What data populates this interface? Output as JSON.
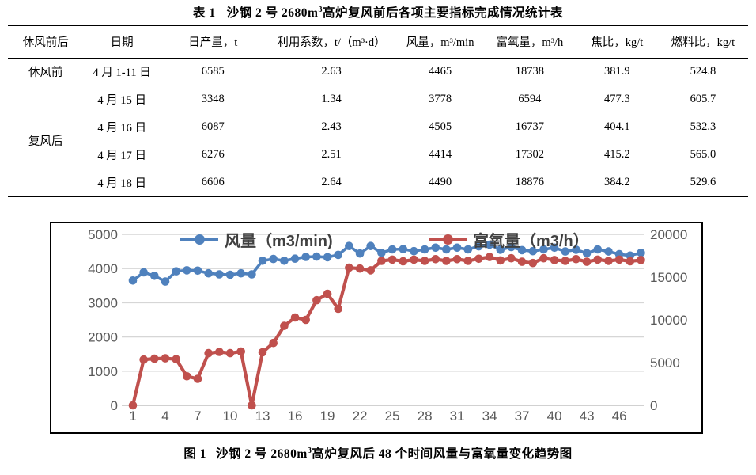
{
  "table_title": {
    "label": "表 1",
    "text": "沙钢 2 号 2680m",
    "sup": "3",
    "rest": "高炉复风前后各项主要指标完成情况统计表"
  },
  "table": {
    "header": [
      "休风前后",
      "日期",
      "日产量，t",
      "利用系数，t/（m³·d）",
      "风量，m³/min",
      "富氧量，m³/h",
      "焦比，kg/t",
      "燃料比，kg/t"
    ],
    "groups": [
      {
        "label": "休风前",
        "span": 1
      },
      {
        "label": "复风后",
        "span": 4
      }
    ],
    "rows": [
      [
        "4 月 1-11 日",
        "6585",
        "2.63",
        "4465",
        "18738",
        "381.9",
        "524.8"
      ],
      [
        "4 月 15 日",
        "3348",
        "1.34",
        "3778",
        "6594",
        "477.3",
        "605.7"
      ],
      [
        "4 月 16 日",
        "6087",
        "2.43",
        "4505",
        "16737",
        "404.1",
        "532.3"
      ],
      [
        "4 月 17 日",
        "6276",
        "2.51",
        "4414",
        "17302",
        "415.2",
        "565.0"
      ],
      [
        "4 月 18 日",
        "6606",
        "2.64",
        "4490",
        "18876",
        "384.2",
        "529.6"
      ]
    ]
  },
  "figure_caption": {
    "label": "图 1",
    "text": "沙钢 2 号 2680m",
    "sup": "3",
    "rest": "高炉复风后 48 个时间风量与富氧量变化趋势图"
  },
  "colors": {
    "wind_series": "#4F81BD",
    "oxygen_series": "#C0504D",
    "gridline": "#D6D6D6",
    "zero_line": "#C2C2C2",
    "axis_text": "#595959",
    "legend_text": "#404040"
  },
  "chart_data": {
    "type": "line",
    "title": "",
    "xlabel": "",
    "ylabel_left": "风量 m3/min",
    "ylabel_right": "富氧量 m3/h",
    "grid": true,
    "legend_position": "top-inside",
    "x": [
      1,
      2,
      3,
      4,
      5,
      6,
      7,
      8,
      9,
      10,
      11,
      12,
      13,
      14,
      15,
      16,
      17,
      18,
      19,
      20,
      21,
      22,
      23,
      24,
      25,
      26,
      27,
      28,
      29,
      30,
      31,
      32,
      33,
      34,
      35,
      36,
      37,
      38,
      39,
      40,
      41,
      42,
      43,
      44,
      45,
      46,
      47,
      48
    ],
    "x_ticks": [
      1,
      4,
      7,
      10,
      13,
      16,
      19,
      22,
      25,
      28,
      31,
      34,
      37,
      40,
      43,
      46
    ],
    "left_axis": {
      "min": 0,
      "max": 5000,
      "ticks": [
        0,
        1000,
        2000,
        3000,
        4000,
        5000
      ]
    },
    "right_axis": {
      "min": 0,
      "max": 20000,
      "ticks": [
        0,
        5000,
        10000,
        15000,
        20000
      ]
    },
    "series": [
      {
        "name": "风量（m3/min)",
        "axis": "left",
        "color": "#4F81BD",
        "marker": "circle",
        "values": [
          3650,
          3890,
          3790,
          3620,
          3920,
          3950,
          3940,
          3860,
          3830,
          3820,
          3860,
          3830,
          4230,
          4280,
          4230,
          4290,
          4340,
          4350,
          4330,
          4400,
          4660,
          4440,
          4660,
          4460,
          4560,
          4570,
          4510,
          4560,
          4610,
          4560,
          4610,
          4560,
          4650,
          4700,
          4550,
          4630,
          4540,
          4510,
          4560,
          4610,
          4500,
          4550,
          4450,
          4560,
          4500,
          4420,
          4380,
          4460
        ]
      },
      {
        "name": "富氧量（m3/h）",
        "axis": "right",
        "color": "#C0504D",
        "marker": "circle",
        "values": [
          0,
          5350,
          5450,
          5500,
          5400,
          3400,
          3100,
          6100,
          6250,
          6100,
          6300,
          0,
          6200,
          7300,
          9300,
          10280,
          10000,
          12300,
          13050,
          11300,
          16100,
          16000,
          15800,
          16900,
          17050,
          16850,
          17050,
          16900,
          17100,
          16900,
          17100,
          16900,
          17150,
          17350,
          16950,
          17200,
          16800,
          16650,
          17200,
          17000,
          16900,
          17100,
          16800,
          17050,
          16900,
          17050,
          16850,
          17000
        ]
      }
    ]
  }
}
